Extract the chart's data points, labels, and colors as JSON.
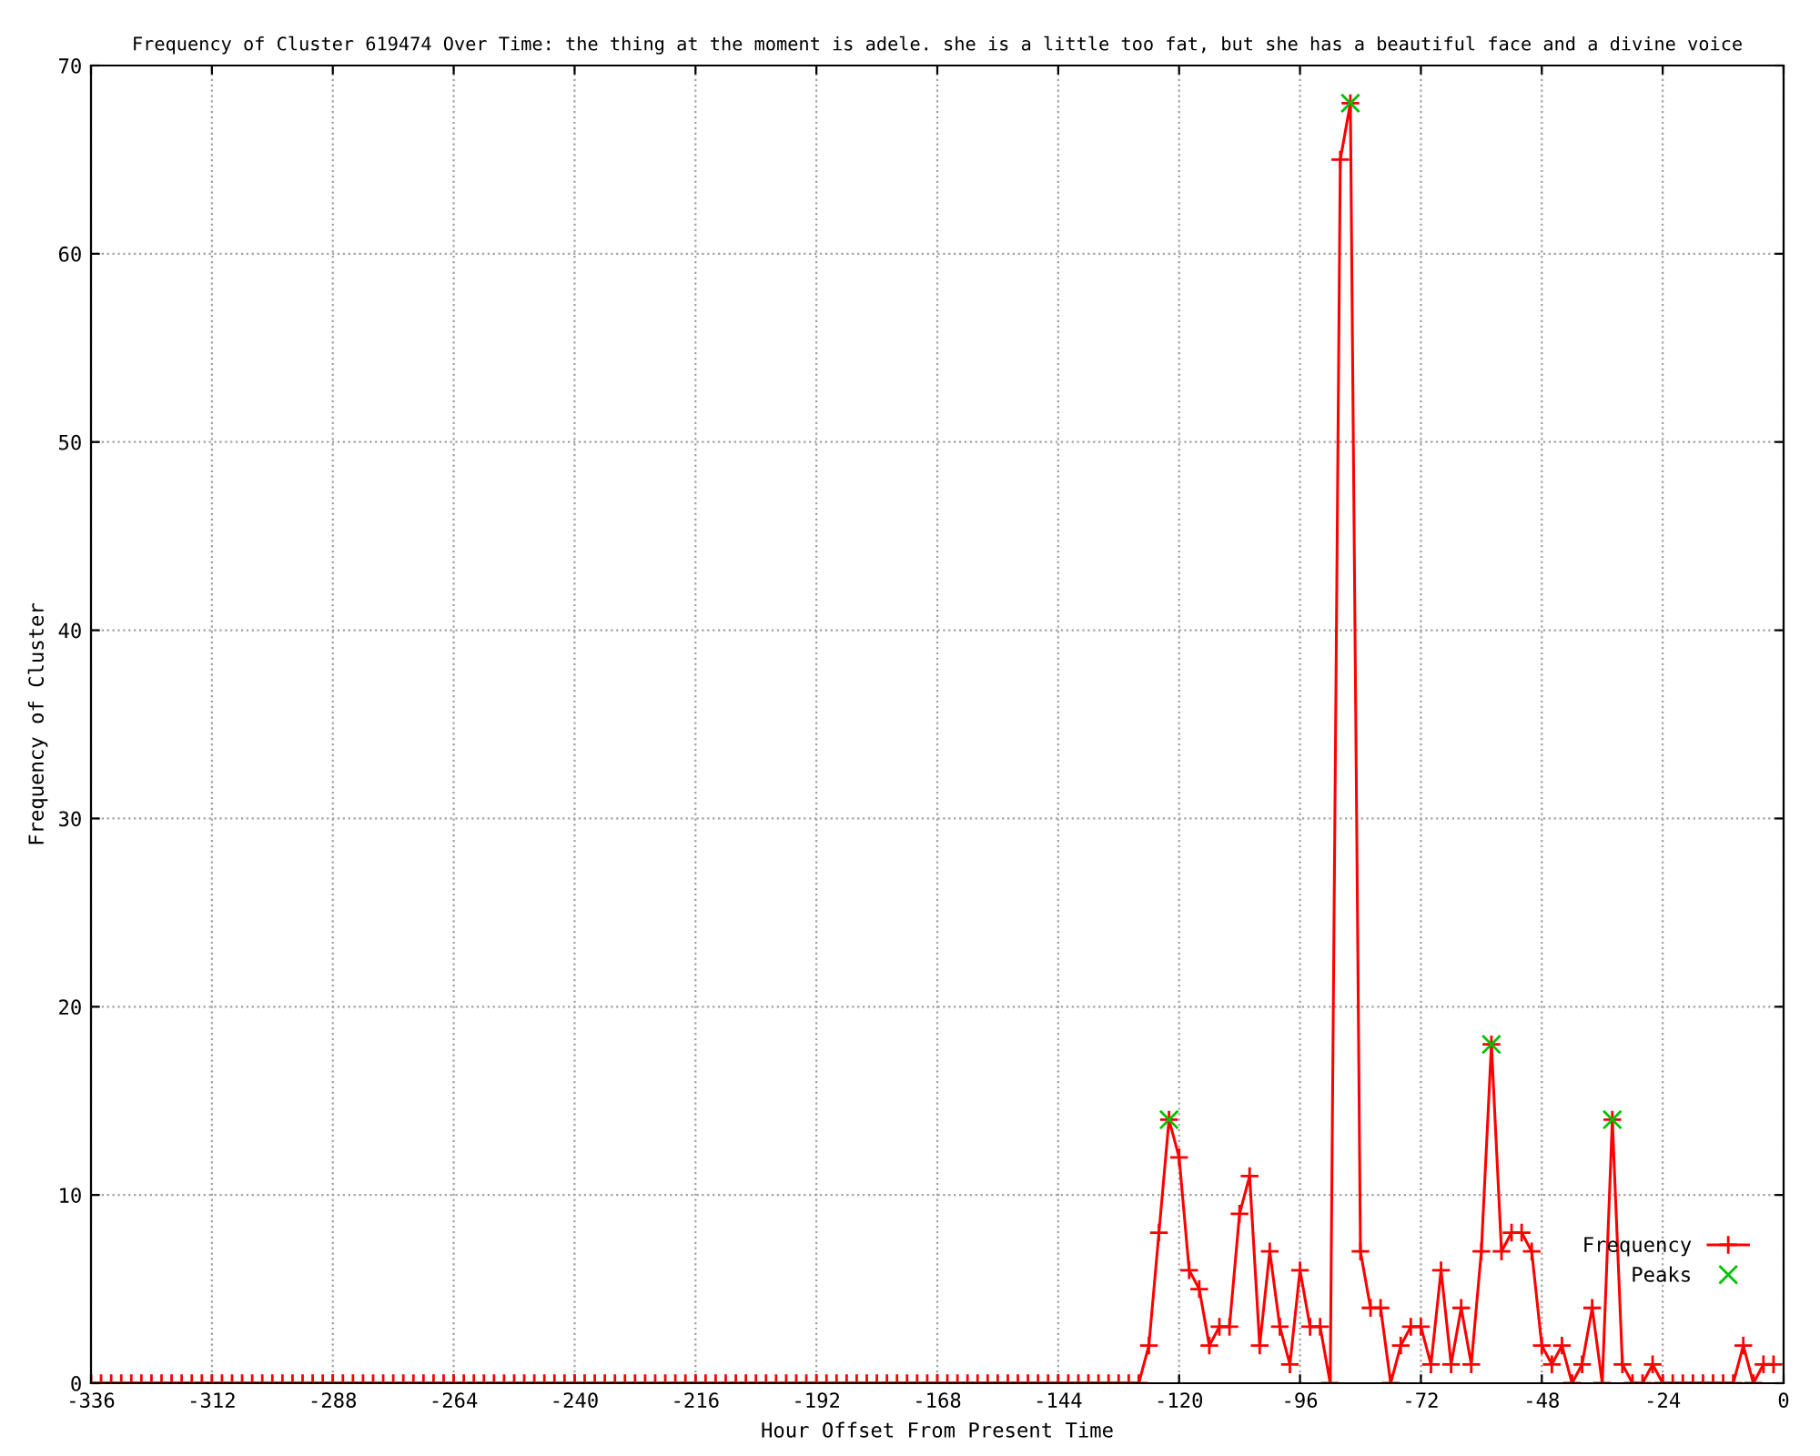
{
  "chart_data": {
    "type": "line",
    "title": "Frequency of Cluster 619474 Over Time: the thing at the moment is adele. she is a little too fat, but she has a beautiful face and a divine voice",
    "xlabel": "Hour Offset From Present Time",
    "ylabel": "Frequency of Cluster",
    "x": [
      -336,
      -334,
      -332,
      -330,
      -328,
      -326,
      -324,
      -322,
      -320,
      -318,
      -316,
      -314,
      -312,
      -310,
      -308,
      -306,
      -304,
      -302,
      -300,
      -298,
      -296,
      -294,
      -292,
      -290,
      -288,
      -286,
      -284,
      -282,
      -280,
      -278,
      -276,
      -274,
      -272,
      -270,
      -268,
      -266,
      -264,
      -262,
      -260,
      -258,
      -256,
      -254,
      -252,
      -250,
      -248,
      -246,
      -244,
      -242,
      -240,
      -238,
      -236,
      -234,
      -232,
      -230,
      -228,
      -226,
      -224,
      -222,
      -220,
      -218,
      -216,
      -214,
      -212,
      -210,
      -208,
      -206,
      -204,
      -202,
      -200,
      -198,
      -196,
      -194,
      -192,
      -190,
      -188,
      -186,
      -184,
      -182,
      -180,
      -178,
      -176,
      -174,
      -172,
      -170,
      -168,
      -166,
      -164,
      -162,
      -160,
      -158,
      -156,
      -154,
      -152,
      -150,
      -148,
      -146,
      -144,
      -142,
      -140,
      -138,
      -136,
      -134,
      -132,
      -130,
      -128,
      -126,
      -124,
      -122,
      -120,
      -118,
      -116,
      -114,
      -112,
      -110,
      -108,
      -106,
      -104,
      -102,
      -100,
      -98,
      -96,
      -94,
      -92,
      -90,
      -88,
      -86,
      -84,
      -82,
      -80,
      -78,
      -76,
      -74,
      -72,
      -70,
      -68,
      -66,
      -64,
      -62,
      -60,
      -58,
      -56,
      -54,
      -52,
      -50,
      -48,
      -46,
      -44,
      -42,
      -40,
      -38,
      -36,
      -34,
      -32,
      -30,
      -28,
      -26,
      -24,
      -22,
      -20,
      -18,
      -16,
      -14,
      -12,
      -10,
      -8,
      -6,
      -4,
      -2
    ],
    "series": [
      {
        "name": "Frequency",
        "color": "#ff0000",
        "marker": "cross",
        "values": [
          0,
          0,
          0,
          0,
          0,
          0,
          0,
          0,
          0,
          0,
          0,
          0,
          0,
          0,
          0,
          0,
          0,
          0,
          0,
          0,
          0,
          0,
          0,
          0,
          0,
          0,
          0,
          0,
          0,
          0,
          0,
          0,
          0,
          0,
          0,
          0,
          0,
          0,
          0,
          0,
          0,
          0,
          0,
          0,
          0,
          0,
          0,
          0,
          0,
          0,
          0,
          0,
          0,
          0,
          0,
          0,
          0,
          0,
          0,
          0,
          0,
          0,
          0,
          0,
          0,
          0,
          0,
          0,
          0,
          0,
          0,
          0,
          0,
          0,
          0,
          0,
          0,
          0,
          0,
          0,
          0,
          0,
          0,
          0,
          0,
          0,
          0,
          0,
          0,
          0,
          0,
          0,
          0,
          0,
          0,
          0,
          0,
          0,
          0,
          0,
          0,
          0,
          0,
          0,
          0,
          2,
          8,
          14,
          12,
          6,
          5,
          2,
          3,
          3,
          9,
          11,
          2,
          7,
          3,
          1,
          6,
          3,
          3,
          0,
          65,
          68,
          7,
          4,
          4,
          0,
          2,
          3,
          3,
          1,
          6,
          1,
          4,
          1,
          7,
          18,
          7,
          8,
          8,
          7,
          2,
          1,
          2,
          0,
          1,
          4,
          0,
          14,
          1,
          0,
          0,
          1,
          0,
          0,
          0,
          0,
          0,
          0,
          0,
          0,
          2,
          0,
          1,
          1
        ]
      },
      {
        "name": "Peaks",
        "type": "scatter",
        "color": "#00c000",
        "marker": "x",
        "x": [
          -122,
          -86,
          -58,
          -34
        ],
        "values": [
          14,
          68,
          18,
          14
        ]
      }
    ],
    "xlim": [
      -336,
      0
    ],
    "xticks": [
      -336,
      -312,
      -288,
      -264,
      -240,
      -216,
      -192,
      -168,
      -144,
      -120,
      -96,
      -72,
      -48,
      -24,
      0
    ],
    "ylim": [
      0,
      70
    ],
    "yticks": [
      0,
      10,
      20,
      30,
      40,
      50,
      60,
      70
    ],
    "grid": true,
    "legend": "bottom right"
  }
}
